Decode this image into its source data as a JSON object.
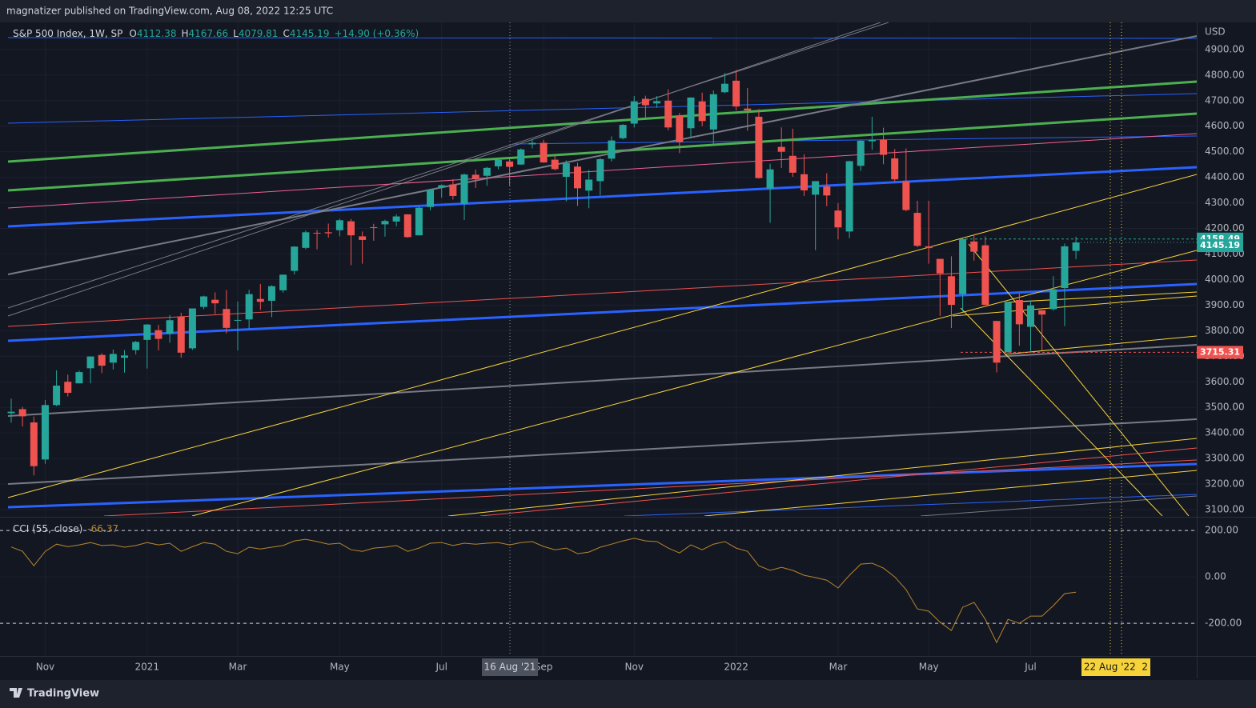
{
  "chart_data": {
    "type": "candlestick",
    "published": "magnatizer published on TradingView.com, Aug 08, 2022 12:25 UTC",
    "title": "S&P 500 Index, 1W, SP",
    "ohlc_labels": [
      "O",
      "H",
      "L",
      "C"
    ],
    "change": "+14.90 (+0.36%)",
    "currency": "USD",
    "up_color": "#26a69a",
    "down_color": "#ef5350",
    "categories": [
      null,
      null,
      null,
      "Nov",
      null,
      null,
      null,
      null,
      null,
      null,
      null,
      null,
      "2021",
      null,
      null,
      null,
      null,
      null,
      null,
      null,
      "Mar",
      null,
      null,
      null,
      null,
      null,
      null,
      null,
      null,
      "May",
      null,
      null,
      null,
      null,
      null,
      null,
      null,
      null,
      "Jul",
      null,
      null,
      null,
      null,
      null,
      null,
      null,
      null,
      "Sep",
      null,
      null,
      null,
      null,
      null,
      null,
      null,
      "Nov",
      null,
      null,
      null,
      null,
      null,
      null,
      null,
      null,
      "2022",
      null,
      null,
      null,
      null,
      null,
      null,
      null,
      null,
      "Mar",
      null,
      null,
      null,
      null,
      null,
      null,
      null,
      "May",
      null,
      null,
      null,
      null,
      null,
      null,
      null,
      null,
      "Jul",
      null,
      null,
      null,
      null
    ],
    "open": [
      3477,
      3493,
      3441,
      3296,
      3509,
      3600,
      3594,
      3653,
      3705,
      3675,
      3694,
      3724,
      3764,
      3802,
      3788,
      3855,
      3731,
      3893,
      3921,
      3885,
      3842,
      3844,
      3924,
      3917,
      3958,
      4034,
      4124,
      4183,
      4185,
      4193,
      4228,
      4169,
      4205,
      4216,
      4227,
      4255,
      4173,
      4284,
      4361,
      4372,
      4296,
      4410,
      4406,
      4443,
      4462,
      4450,
      4529,
      4535,
      4469,
      4402,
      4442,
      4348,
      4385,
      4473,
      4553,
      4610,
      4707,
      4689,
      4700,
      4640,
      4592,
      4697,
      4587,
      4733,
      4778,
      4669,
      4637,
      4356,
      4519,
      4484,
      4412,
      4332,
      4364,
      4270,
      4188,
      4445,
      4541,
      4547,
      4474,
      4385,
      4261,
      4130,
      4081,
      4013,
      3943,
      4149,
      4134,
      3838,
      3715,
      3920,
      3815,
      3880,
      3884,
      3967,
      4112.38
    ],
    "high": [
      3534,
      3502,
      3464,
      3529,
      3645,
      3628,
      3644,
      3699,
      3712,
      3726,
      3724,
      3760,
      3826,
      3823,
      3861,
      3870,
      3887,
      3937,
      3950,
      3959,
      3914,
      3960,
      3983,
      3978,
      4020,
      4130,
      4192,
      4194,
      4219,
      4238,
      4237,
      4188,
      4218,
      4234,
      4255,
      4256,
      4286,
      4355,
      4372,
      4393,
      4415,
      4430,
      4441,
      4469,
      4472,
      4513,
      4546,
      4547,
      4486,
      4466,
      4457,
      4429,
      4476,
      4560,
      4608,
      4718,
      4719,
      4718,
      4744,
      4652,
      4713,
      4731,
      4740,
      4808,
      4819,
      4749,
      4667,
      4453,
      4595,
      4590,
      4490,
      4385,
      4416,
      4299,
      4465,
      4546,
      4637,
      4594,
      4511,
      4513,
      4308,
      4308,
      4081,
      4091,
      4158,
      4177,
      4169,
      3838,
      3913,
      3945,
      3919,
      3880,
      4013,
      4141,
      4167.66
    ],
    "low": [
      3440,
      3425,
      3234,
      3279,
      3505,
      3543,
      3594,
      3594,
      3634,
      3648,
      3636,
      3707,
      3652,
      3723,
      3753,
      3694,
      3725,
      3884,
      3865,
      3789,
      3723,
      3806,
      3881,
      3853,
      3949,
      4020,
      4118,
      4118,
      4164,
      4169,
      4056,
      4062,
      4152,
      4168,
      4208,
      4164,
      4173,
      4271,
      4320,
      4313,
      4233,
      4358,
      4367,
      4431,
      4367,
      4449,
      4513,
      4457,
      4427,
      4306,
      4288,
      4279,
      4329,
      4462,
      4548,
      4595,
      4630,
      4672,
      4584,
      4495,
      4558,
      4600,
      4531,
      4729,
      4662,
      4582,
      4395,
      4222,
      4436,
      4402,
      4327,
      4115,
      4287,
      4157,
      4162,
      4425,
      4507,
      4451,
      4382,
      4267,
      4127,
      4062,
      3858,
      3810,
      3875,
      4074,
      3900,
      3637,
      3715,
      3741,
      3721,
      3722,
      3878,
      3818,
      4079.81
    ],
    "close": [
      3483,
      3465,
      3270,
      3509,
      3585,
      3557,
      3638,
      3699,
      3663,
      3709,
      3703,
      3756,
      3824,
      3768,
      3841,
      3714,
      3887,
      3934,
      3907,
      3811,
      3842,
      3943,
      3913,
      3974,
      4019,
      4129,
      4185,
      4180,
      4181,
      4232,
      4173,
      4155,
      4204,
      4229,
      4247,
      4166,
      4281,
      4352,
      4369,
      4327,
      4411,
      4395,
      4437,
      4468,
      4441,
      4509,
      4535,
      4458,
      4432,
      4455,
      4357,
      4391,
      4471,
      4544,
      4605,
      4697,
      4682,
      4698,
      4595,
      4538,
      4712,
      4620,
      4725,
      4766,
      4677,
      4662,
      4397,
      4431,
      4500,
      4418,
      4349,
      4385,
      4329,
      4204,
      4463,
      4543,
      4546,
      4488,
      4392,
      4272,
      4132,
      4123,
      4024,
      3901,
      4158,
      4109,
      3901,
      3675,
      3912,
      3825,
      3899,
      3863,
      3962,
      4130,
      4145.19
    ],
    "ylim": [
      3075,
      5006
    ],
    "yticks": [
      {
        "value": 3100,
        "label": "3100.00"
      },
      {
        "value": 3200,
        "label": "3200.00"
      },
      {
        "value": 3300,
        "label": "3300.00"
      },
      {
        "value": 3400,
        "label": "3400.00"
      },
      {
        "value": 3500,
        "label": "3500.00"
      },
      {
        "value": 3600,
        "label": "3600.00"
      },
      {
        "value": 3700,
        "label": "3700.00"
      },
      {
        "value": 3800,
        "label": "3800.00"
      },
      {
        "value": 3900,
        "label": "3900.00"
      },
      {
        "value": 4000,
        "label": "4000.00"
      },
      {
        "value": 4100,
        "label": "4100.00"
      },
      {
        "value": 4200,
        "label": "4200.00"
      },
      {
        "value": 4300,
        "label": "4300.00"
      },
      {
        "value": 4400,
        "label": "4400.00"
      },
      {
        "value": 4500,
        "label": "4500.00"
      },
      {
        "value": 4600,
        "label": "4600.00"
      },
      {
        "value": 4700,
        "label": "4700.00"
      },
      {
        "value": 4800,
        "label": "4800.00"
      },
      {
        "value": 4900,
        "label": "4900.00"
      }
    ],
    "levels": [
      {
        "value": 4158.49,
        "color": "#26a69a"
      },
      {
        "value": 3715.31,
        "color": "#ef5350"
      }
    ],
    "crosshair_labels": [
      "16 Aug '21",
      "22 Aug '22  2"
    ],
    "indicator": {
      "name": "CCI (55, close)",
      "color": "#b8862b",
      "values": [
        129,
        110,
        48,
        110,
        141,
        130,
        138,
        148,
        135,
        138,
        128,
        135,
        148,
        138,
        145,
        110,
        130,
        148,
        141,
        110,
        100,
        128,
        120,
        128,
        135,
        155,
        162,
        152,
        141,
        145,
        117,
        110,
        124,
        128,
        135,
        110,
        124,
        145,
        148,
        135,
        145,
        141,
        145,
        148,
        138,
        148,
        152,
        131,
        117,
        124,
        100,
        107,
        128,
        141,
        155,
        166,
        155,
        152,
        124,
        103,
        138,
        117,
        141,
        152,
        124,
        110,
        48,
        28,
        41,
        28,
        7,
        -3,
        -14,
        -48,
        7,
        55,
        59,
        38,
        0,
        -55,
        -138,
        -148,
        -195,
        -231,
        -131,
        -110,
        -183,
        -283,
        -183,
        -200,
        -169,
        -169,
        -124,
        -72,
        -66.37
      ],
      "ylim": [
        -341,
        252
      ],
      "yticks": [
        {
          "value": 200,
          "label": "200.00"
        },
        {
          "value": 0,
          "label": "0.00"
        },
        {
          "value": -200,
          "label": "-200.00"
        }
      ],
      "band_lines": [
        200,
        -200
      ]
    },
    "brand": "TradingView"
  }
}
